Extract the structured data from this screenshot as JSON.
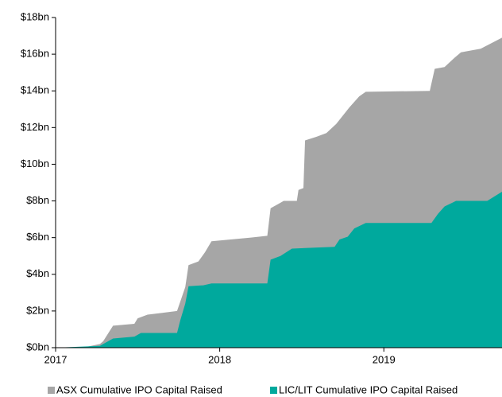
{
  "chart_data": {
    "type": "area",
    "xlim": [
      2017,
      2019.72
    ],
    "xticks": [
      2017,
      2018,
      2019
    ],
    "ylim": [
      0,
      18
    ],
    "yticks": [
      {
        "value": 0,
        "label": "$0bn"
      },
      {
        "value": 2,
        "label": "$2bn"
      },
      {
        "value": 4,
        "label": "$4bn"
      },
      {
        "value": 6,
        "label": "$6bn"
      },
      {
        "value": 8,
        "label": "$8bn"
      },
      {
        "value": 10,
        "label": "$10bn"
      },
      {
        "value": 12,
        "label": "$12bn"
      },
      {
        "value": 14,
        "label": "$14bn"
      },
      {
        "value": 16,
        "label": "$16bn"
      },
      {
        "value": 18,
        "label": "$18bn"
      }
    ],
    "series": [
      {
        "name": "ASX Cumulative IPO Capital Raised",
        "color": "#a6a6a6",
        "x": [
          2017.0,
          2017.19,
          2017.27,
          2017.29,
          2017.35,
          2017.48,
          2017.5,
          2017.56,
          2017.65,
          2017.74,
          2017.79,
          2017.81,
          2017.87,
          2017.91,
          2017.95,
          2018.19,
          2018.29,
          2018.31,
          2018.39,
          2018.47,
          2018.48,
          2018.51,
          2018.52,
          2018.59,
          2018.65,
          2018.71,
          2018.79,
          2018.85,
          2018.89,
          2019.28,
          2019.31,
          2019.37,
          2019.43,
          2019.47,
          2019.59,
          2019.72
        ],
        "values": [
          0,
          0.05,
          0.2,
          0.35,
          1.2,
          1.3,
          1.6,
          1.8,
          1.9,
          2.0,
          3.3,
          4.5,
          4.7,
          5.2,
          5.8,
          6.0,
          6.1,
          7.6,
          8.0,
          8.0,
          8.6,
          8.7,
          11.3,
          11.5,
          11.7,
          12.2,
          13.1,
          13.7,
          13.95,
          14.0,
          15.2,
          15.3,
          15.8,
          16.1,
          16.3,
          16.9
        ]
      },
      {
        "name": "LIC/LIT Cumulative IPO Capital Raised",
        "color": "#00a99d",
        "x": [
          2017.0,
          2017.27,
          2017.35,
          2017.48,
          2017.52,
          2017.74,
          2017.76,
          2017.79,
          2017.81,
          2017.9,
          2017.95,
          2018.29,
          2018.31,
          2018.37,
          2018.44,
          2018.7,
          2018.73,
          2018.78,
          2018.82,
          2018.89,
          2019.29,
          2019.33,
          2019.37,
          2019.44,
          2019.63,
          2019.72
        ],
        "values": [
          0,
          0.1,
          0.5,
          0.6,
          0.8,
          0.8,
          1.5,
          2.4,
          3.35,
          3.4,
          3.5,
          3.5,
          4.8,
          5.0,
          5.4,
          5.5,
          5.9,
          6.05,
          6.5,
          6.8,
          6.8,
          7.3,
          7.7,
          8.0,
          8.0,
          8.5
        ]
      }
    ]
  }
}
